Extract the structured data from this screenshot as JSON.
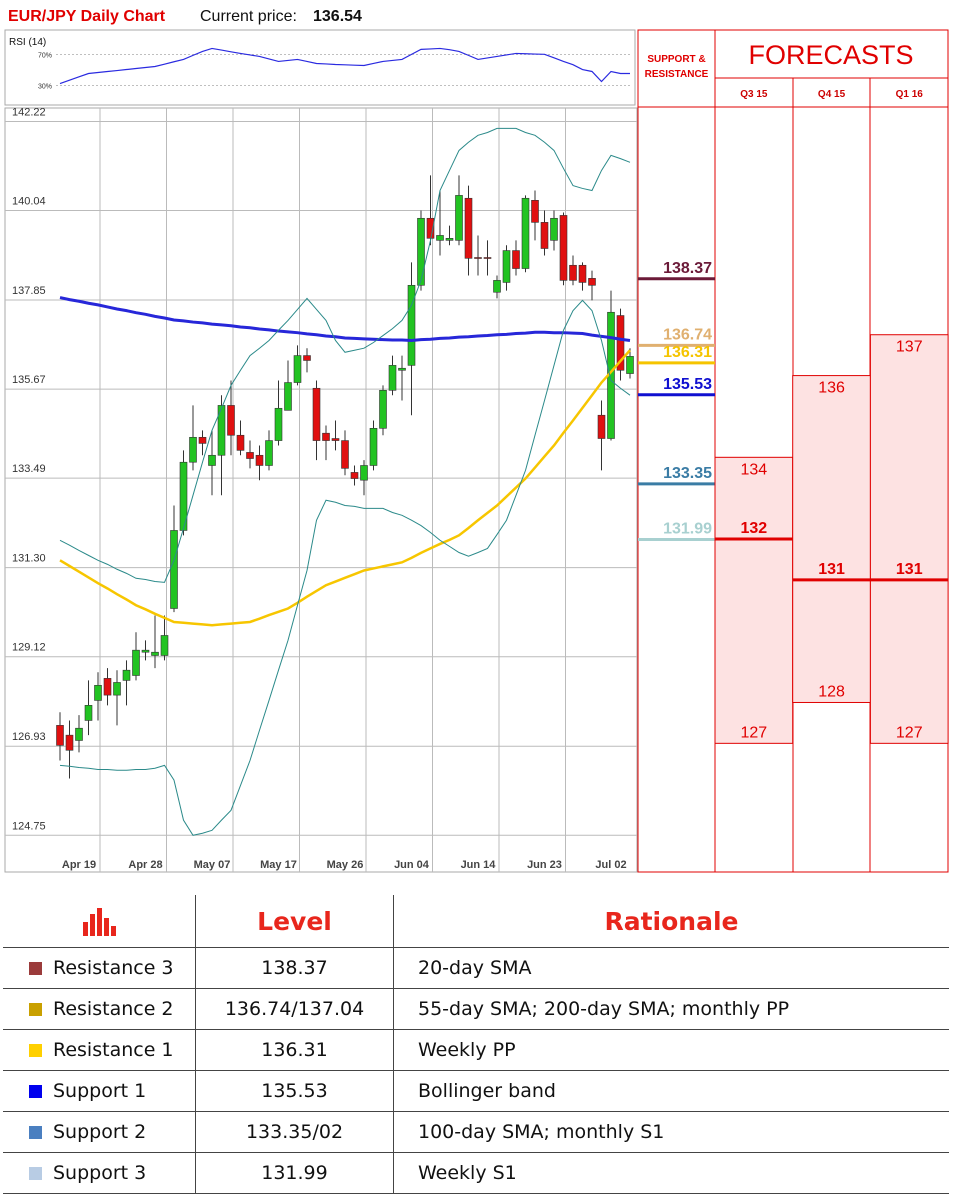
{
  "header": {
    "title": "EUR/JPY Daily Chart",
    "price_label": "Current price:",
    "current_price": 136.54
  },
  "chart_data": [
    {
      "type": "line",
      "title": "RSI (14)",
      "color": "#2a2ae0",
      "ylim": [
        5,
        95
      ],
      "yticks": [
        {
          "value": 70,
          "label": "70%"
        },
        {
          "value": 30,
          "label": "30%"
        }
      ],
      "values": [
        32.6,
        36.9,
        41.2,
        45.5,
        46.8,
        48.1,
        49.3,
        50.6,
        51.9,
        53.2,
        54.5,
        57.5,
        60.6,
        63.6,
        68.8,
        73.9,
        77.7,
        75.6,
        73.4,
        71.3,
        69.4,
        67.4,
        64.2,
        61.0,
        62.3,
        63.6,
        61.0,
        58.4,
        57.8,
        57.1,
        56.7,
        56.2,
        55.8,
        58.4,
        61.0,
        62.3,
        63.6,
        70.1,
        76.5,
        77.1,
        77.7,
        76.1,
        73.9,
        68.8,
        63.6,
        65.5,
        67.4,
        69.4,
        71.3,
        70.9,
        70.5,
        70.2,
        65.6,
        61.0,
        56.8,
        50.6,
        48.1,
        35.2,
        48.1,
        45.5,
        45.5
      ]
    },
    {
      "type": "candlestick",
      "up_color": "#22c322",
      "down_color": "#e01010",
      "grid": true,
      "ylim": [
        123.9,
        142.5
      ],
      "yticks": [
        142.22,
        140.04,
        137.85,
        135.67,
        133.49,
        {
          "value": 131.3,
          "label": "131.30"
        },
        129.12,
        126.93,
        124.75
      ],
      "categories": [
        null,
        null,
        "Apr 19",
        null,
        null,
        null,
        null,
        null,
        null,
        "Apr 28",
        null,
        null,
        null,
        null,
        null,
        null,
        "May 07",
        null,
        null,
        null,
        null,
        null,
        null,
        "May 17",
        null,
        null,
        null,
        null,
        null,
        null,
        "May 26",
        null,
        null,
        null,
        null,
        null,
        null,
        "Jun 04",
        null,
        null,
        null,
        null,
        null,
        null,
        "Jun 14",
        null,
        null,
        null,
        null,
        null,
        null,
        "Jun 23",
        null,
        null,
        null,
        null,
        null,
        null,
        "Jul 02",
        null,
        null
      ],
      "open": [
        127.44,
        127.2,
        127.07,
        127.56,
        128.05,
        128.59,
        128.18,
        128.54,
        128.66,
        129.23,
        129.15,
        129.15,
        130.3,
        132.21,
        133.88,
        134.49,
        133.8,
        134.05,
        135.27,
        134.54,
        134.12,
        134.05,
        133.8,
        134.41,
        135.15,
        135.83,
        136.49,
        135.69,
        134.59,
        134.46,
        134.41,
        133.63,
        133.44,
        133.8,
        134.71,
        135.64,
        136.13,
        136.25,
        138.21,
        139.85,
        139.31,
        139.31,
        139.31,
        140.34,
        138.89,
        138.89,
        138.04,
        138.28,
        139.06,
        138.62,
        140.29,
        139.75,
        139.31,
        139.92,
        138.7,
        138.7,
        138.38,
        135.03,
        134.46,
        137.47,
        136.05
      ],
      "high": [
        127.76,
        127.56,
        127.69,
        128.54,
        128.74,
        128.84,
        128.79,
        129.03,
        129.72,
        129.52,
        130.13,
        130.13,
        132.82,
        134.17,
        135.27,
        134.66,
        134.66,
        135.52,
        135.88,
        134.9,
        134.41,
        134.29,
        134.66,
        135.88,
        136.37,
        136.74,
        136.67,
        135.88,
        134.78,
        134.9,
        134.66,
        133.8,
        133.93,
        134.9,
        135.76,
        136.49,
        136.49,
        138.77,
        140.04,
        140.9,
        140.53,
        139.67,
        140.9,
        140.65,
        139.43,
        139.31,
        138.45,
        139.19,
        139.31,
        140.41,
        140.53,
        140.04,
        140.04,
        139.99,
        138.94,
        138.77,
        138.57,
        135.39,
        138.08,
        137.64,
        136.67
      ],
      "low": [
        126.58,
        126.14,
        126.78,
        127.2,
        127.56,
        127.93,
        127.44,
        127.93,
        128.54,
        129.03,
        128.84,
        129.03,
        130.21,
        132.09,
        133.68,
        134.05,
        133.07,
        133.07,
        134.05,
        134.05,
        133.73,
        133.44,
        133.68,
        134.29,
        135.15,
        135.76,
        136.08,
        133.93,
        133.93,
        134.17,
        133.56,
        133.31,
        133.07,
        133.68,
        134.54,
        135.52,
        135.39,
        135.03,
        138.08,
        139.19,
        138.94,
        139.19,
        139.19,
        138.45,
        138.45,
        138.45,
        137.89,
        138.08,
        138.45,
        138.53,
        139.31,
        138.94,
        139.06,
        138.21,
        138.21,
        138.08,
        137.84,
        133.68,
        134.41,
        135.88,
        135.93
      ],
      "close": [
        126.95,
        126.83,
        127.37,
        127.93,
        128.42,
        128.18,
        128.49,
        128.79,
        129.28,
        129.28,
        129.23,
        129.64,
        132.21,
        133.88,
        134.49,
        134.34,
        134.05,
        135.27,
        134.54,
        134.17,
        133.97,
        133.8,
        134.41,
        135.2,
        135.83,
        136.49,
        136.37,
        134.41,
        134.41,
        134.41,
        133.73,
        133.48,
        133.8,
        134.71,
        135.64,
        136.25,
        136.18,
        138.21,
        139.85,
        139.36,
        139.43,
        139.36,
        140.41,
        138.87,
        138.87,
        138.87,
        138.33,
        139.06,
        138.62,
        140.34,
        139.75,
        139.11,
        139.85,
        138.33,
        138.33,
        138.28,
        138.21,
        134.46,
        137.55,
        136.13,
        136.47
      ],
      "overlays": [
        {
          "color": "#2727d9",
          "values": [
            137.91,
            137.86,
            137.82,
            137.77,
            137.73,
            137.68,
            137.63,
            137.59,
            137.54,
            137.5,
            137.45,
            137.41,
            137.36,
            137.34,
            137.31,
            137.29,
            137.26,
            137.24,
            137.22,
            137.19,
            137.17,
            137.14,
            137.12,
            137.09,
            137.07,
            137.05,
            137.02,
            137.0,
            136.97,
            136.95,
            136.92,
            136.91,
            136.9,
            136.89,
            136.88,
            136.87,
            136.87,
            136.86,
            136.88,
            136.89,
            136.91,
            136.92,
            136.94,
            136.95,
            136.97,
            136.98,
            137.0,
            137.01,
            137.03,
            137.04,
            137.06,
            137.06,
            137.05,
            137.05,
            137.04,
            137.03,
            136.99,
            136.96,
            136.93,
            136.89,
            136.86
          ]
        },
        {
          "color": "#f7c600",
          "values": [
            131.48,
            131.34,
            131.2,
            131.06,
            130.92,
            130.79,
            130.65,
            130.52,
            130.38,
            130.28,
            130.17,
            130.07,
            129.97,
            129.95,
            129.93,
            129.91,
            129.89,
            129.91,
            129.93,
            129.95,
            129.97,
            130.05,
            130.14,
            130.22,
            130.3,
            130.44,
            130.59,
            130.73,
            130.87,
            130.96,
            131.05,
            131.14,
            131.23,
            131.28,
            131.33,
            131.38,
            131.43,
            131.54,
            131.66,
            131.77,
            131.88,
            131.98,
            132.09,
            132.27,
            132.46,
            132.64,
            132.82,
            133.04,
            133.26,
            133.48,
            133.75,
            134.02,
            134.29,
            134.6,
            134.9,
            135.21,
            135.52,
            135.83,
            136.09,
            136.36,
            136.62
          ]
        },
        {
          "color": "#2b8a8a",
          "values": [
            131.97,
            131.85,
            131.72,
            131.6,
            131.48,
            131.38,
            131.26,
            131.16,
            131.04,
            131.01,
            130.96,
            130.94,
            131.48,
            132.26,
            133.07,
            133.88,
            134.66,
            135.2,
            135.76,
            136.13,
            136.49,
            136.67,
            136.86,
            137.11,
            137.35,
            137.62,
            137.89,
            137.62,
            137.35,
            136.86,
            136.57,
            136.62,
            136.67,
            136.81,
            136.98,
            137.15,
            137.35,
            137.72,
            138.33,
            139.31,
            140.53,
            141.02,
            141.51,
            141.71,
            141.88,
            141.95,
            142.05,
            142.05,
            142.05,
            141.95,
            141.88,
            141.71,
            141.51,
            141.07,
            140.65,
            140.58,
            140.53,
            141.02,
            141.39,
            141.31,
            141.22
          ]
        },
        {
          "color": "#2b8a8a",
          "values": [
            126.46,
            126.44,
            126.41,
            126.39,
            126.36,
            126.36,
            126.34,
            126.34,
            126.36,
            126.36,
            126.39,
            126.46,
            126.1,
            125.12,
            124.75,
            124.8,
            124.87,
            125.12,
            125.36,
            125.97,
            126.58,
            127.32,
            128.05,
            128.79,
            129.52,
            130.38,
            131.23,
            132.46,
            132.95,
            132.9,
            132.82,
            132.8,
            132.75,
            132.75,
            132.75,
            132.65,
            132.58,
            132.46,
            132.33,
            132.16,
            131.97,
            131.82,
            131.67,
            131.58,
            131.67,
            131.77,
            132.11,
            132.46,
            133.07,
            133.68,
            134.54,
            135.39,
            136.25,
            137.11,
            137.59,
            137.84,
            137.59,
            136.86,
            135.88,
            135.69,
            135.52
          ]
        }
      ]
    }
  ],
  "levels": {
    "title": "SUPPORT & RESISTANCE",
    "items": [
      {
        "value": 138.37,
        "color": "#6b1a38"
      },
      {
        "value": 136.74,
        "color": "#e0b070"
      },
      {
        "value": 136.31,
        "color": "#f5c400"
      },
      {
        "value": 135.53,
        "color": "#1010d0"
      },
      {
        "value": 133.35,
        "color": "#3a7ca5"
      },
      {
        "value": 131.99,
        "color": "#a8d0d0"
      }
    ]
  },
  "forecasts": {
    "title": "FORECASTS",
    "color": "#e00000",
    "fill": "#fde2e2",
    "columns": [
      {
        "label": "Q3 15",
        "high": 134,
        "mid": 132,
        "low": 127
      },
      {
        "label": "Q4 15",
        "high": 136,
        "mid": 131,
        "low": 128
      },
      {
        "label": "Q1 16",
        "high": 137,
        "mid": 131,
        "low": 127
      }
    ]
  },
  "table": {
    "headers": [
      "Level",
      "Rationale"
    ],
    "rows": [
      {
        "color": "#9b3b3b",
        "name": "Resistance 3",
        "level": "138.37",
        "rationale": "20-day SMA"
      },
      {
        "color": "#c9a000",
        "name": "Resistance 2",
        "level": "136.74/137.04",
        "rationale": "55-day SMA; 200-day SMA; monthly PP"
      },
      {
        "color": "#ffd000",
        "name": "Resistance 1",
        "level": "136.31",
        "rationale": "Weekly PP"
      },
      {
        "color": "#0000ee",
        "name": "Support 1",
        "level": "135.53",
        "rationale": "Bollinger band"
      },
      {
        "color": "#4a7fc0",
        "name": "Support 2",
        "level": "133.35/02",
        "rationale": "100-day SMA; monthly S1"
      },
      {
        "color": "#b8cce4",
        "name": "Support 3",
        "level": "131.99",
        "rationale": "Weekly S1"
      }
    ]
  }
}
